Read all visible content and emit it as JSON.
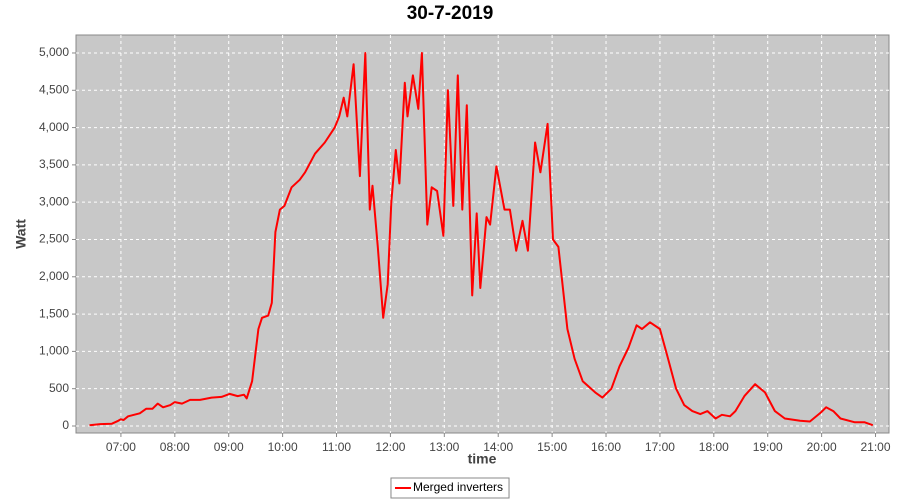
{
  "chart_data": {
    "type": "line",
    "title": "30-7-2019",
    "x_label": "time",
    "y_label": "Watt",
    "x": [
      "06:25",
      "06:37",
      "06:50",
      "06:57",
      "07:00",
      "07:03",
      "07:08",
      "07:21",
      "07:28",
      "07:35",
      "07:41",
      "07:47",
      "07:55",
      "08:00",
      "08:08",
      "08:17",
      "08:28",
      "08:41",
      "08:52",
      "09:01",
      "09:10",
      "09:17",
      "09:20",
      "09:26",
      "09:33",
      "09:37",
      "09:44",
      "09:48",
      "09:52",
      "09:57",
      "10:02",
      "10:10",
      "10:19",
      "10:25",
      "10:36",
      "10:47",
      "10:58",
      "11:03",
      "11:08",
      "11:12",
      "11:19",
      "11:26",
      "11:32",
      "11:37",
      "11:40",
      "11:46",
      "11:52",
      "11:57",
      "12:01",
      "12:06",
      "12:10",
      "12:16",
      "12:19",
      "12:25",
      "12:31",
      "12:35",
      "12:41",
      "12:46",
      "12:52",
      "12:59",
      "13:04",
      "13:10",
      "13:15",
      "13:20",
      "13:25",
      "13:31",
      "13:36",
      "13:40",
      "13:47",
      "13:51",
      "13:58",
      "14:07",
      "14:13",
      "14:20",
      "14:27",
      "14:33",
      "14:41",
      "14:47",
      "14:55",
      "15:01",
      "15:07",
      "15:17",
      "15:25",
      "15:34",
      "15:48",
      "15:56",
      "16:06",
      "16:15",
      "16:25",
      "16:34",
      "16:40",
      "16:49",
      "17:00",
      "17:08",
      "17:18",
      "17:27",
      "17:36",
      "17:45",
      "17:53",
      "18:02",
      "18:09",
      "18:18",
      "18:24",
      "18:34",
      "18:46",
      "18:57",
      "19:08",
      "19:19",
      "19:36",
      "19:47",
      "19:59",
      "20:05",
      "20:13",
      "20:21",
      "20:37",
      "20:48",
      "20:57"
    ],
    "series": [
      {
        "name": "Merged inverters",
        "color": "#ff0000",
        "values": [
          10,
          25,
          30,
          70,
          90,
          80,
          130,
          170,
          230,
          230,
          300,
          250,
          280,
          320,
          300,
          350,
          350,
          380,
          390,
          430,
          400,
          420,
          370,
          600,
          1300,
          1450,
          1480,
          1650,
          2600,
          2900,
          2950,
          3200,
          3300,
          3400,
          3650,
          3800,
          4000,
          4150,
          4400,
          4150,
          4850,
          3350,
          5000,
          2900,
          3220,
          2400,
          1450,
          1900,
          3000,
          3700,
          3250,
          4600,
          4150,
          4700,
          4250,
          5000,
          2700,
          3200,
          3150,
          2550,
          4500,
          2950,
          4700,
          2900,
          4300,
          1750,
          2850,
          1850,
          2800,
          2700,
          3480,
          2900,
          2900,
          2350,
          2750,
          2350,
          3800,
          3400,
          4050,
          2500,
          2400,
          1300,
          900,
          600,
          450,
          380,
          500,
          800,
          1050,
          1350,
          1300,
          1390,
          1300,
          950,
          500,
          280,
          200,
          160,
          200,
          100,
          150,
          130,
          200,
          400,
          560,
          450,
          200,
          100,
          70,
          60,
          180,
          250,
          200,
          100,
          50,
          50,
          10
        ]
      }
    ],
    "xlim": [
      "06:10",
      "21:15"
    ],
    "xticks": [
      "07:00",
      "08:00",
      "09:00",
      "10:00",
      "11:00",
      "12:00",
      "13:00",
      "14:00",
      "15:00",
      "16:00",
      "17:00",
      "18:00",
      "19:00",
      "20:00",
      "21:00"
    ],
    "ylim": [
      -94,
      5241
    ],
    "yticks": [
      0,
      500,
      {
        "value": 1000,
        "label": "1,000"
      },
      {
        "value": 1500,
        "label": "1,500"
      },
      {
        "value": 2000,
        "label": "2,000"
      },
      {
        "value": 2500,
        "label": "2,500"
      },
      {
        "value": 3000,
        "label": "3,000"
      },
      {
        "value": 3500,
        "label": "3,500"
      },
      {
        "value": 4000,
        "label": "4,000"
      },
      {
        "value": 4500,
        "label": "4,500"
      },
      {
        "value": 5000,
        "label": "5,000"
      }
    ],
    "grid": true,
    "legend": "bottom"
  }
}
